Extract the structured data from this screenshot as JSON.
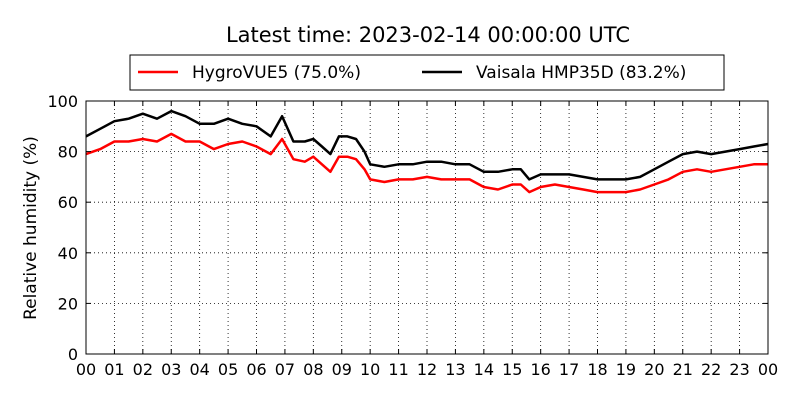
{
  "chart_data": {
    "type": "line",
    "title": "Latest time: 2023-02-14 00:00:00 UTC",
    "xlabel": "",
    "ylabel": "Relative humidity (%)",
    "xlim": [
      0,
      24
    ],
    "ylim": [
      0,
      100
    ],
    "x_ticks": [
      "00",
      "01",
      "02",
      "03",
      "04",
      "05",
      "06",
      "07",
      "08",
      "09",
      "10",
      "11",
      "12",
      "13",
      "14",
      "15",
      "16",
      "17",
      "18",
      "19",
      "20",
      "21",
      "22",
      "23",
      "00"
    ],
    "y_ticks": [
      0,
      20,
      40,
      60,
      80,
      100
    ],
    "grid": true,
    "legend_position": "top",
    "series": [
      {
        "name": "HygroVUE5 (75.0%)",
        "color": "#ff0000",
        "x": [
          0,
          0.5,
          1,
          1.5,
          2,
          2.5,
          3,
          3.5,
          4,
          4.5,
          5,
          5.5,
          6,
          6.5,
          6.9,
          7.3,
          7.7,
          8.0,
          8.3,
          8.6,
          8.9,
          9.2,
          9.5,
          9.8,
          10,
          10.5,
          11,
          11.5,
          12,
          12.5,
          13,
          13.5,
          14,
          14.5,
          15,
          15.3,
          15.6,
          16,
          16.5,
          17,
          17.5,
          18,
          18.5,
          19,
          19.5,
          20,
          20.5,
          21,
          21.5,
          22,
          22.5,
          23,
          23.5,
          24
        ],
        "values": [
          79,
          81,
          84,
          84,
          85,
          84,
          87,
          84,
          84,
          81,
          83,
          84,
          82,
          79,
          85,
          77,
          76,
          78,
          75,
          72,
          78,
          78,
          77,
          73,
          69,
          68,
          69,
          69,
          70,
          69,
          69,
          69,
          66,
          65,
          67,
          67,
          64,
          66,
          67,
          66,
          65,
          64,
          64,
          64,
          65,
          67,
          69,
          72,
          73,
          72,
          73,
          74,
          75,
          75
        ]
      },
      {
        "name": "Vaisala HMP35D (83.2%)",
        "color": "#000000",
        "x": [
          0,
          0.5,
          1,
          1.5,
          2,
          2.5,
          3,
          3.5,
          4,
          4.5,
          5,
          5.5,
          6,
          6.5,
          6.9,
          7.3,
          7.7,
          8.0,
          8.3,
          8.6,
          8.9,
          9.2,
          9.5,
          9.8,
          10,
          10.5,
          11,
          11.5,
          12,
          12.5,
          13,
          13.5,
          14,
          14.5,
          15,
          15.3,
          15.6,
          16,
          16.5,
          17,
          17.5,
          18,
          18.5,
          19,
          19.5,
          20,
          20.5,
          21,
          21.5,
          22,
          22.5,
          23,
          23.5,
          24
        ],
        "values": [
          86,
          89,
          92,
          93,
          95,
          93,
          96,
          94,
          91,
          91,
          93,
          91,
          90,
          86,
          94,
          84,
          84,
          85,
          82,
          79,
          86,
          86,
          85,
          80,
          75,
          74,
          75,
          75,
          76,
          76,
          75,
          75,
          72,
          72,
          73,
          73,
          69,
          71,
          71,
          71,
          70,
          69,
          69,
          69,
          70,
          73,
          76,
          79,
          80,
          79,
          80,
          81,
          82,
          83
        ]
      }
    ]
  }
}
